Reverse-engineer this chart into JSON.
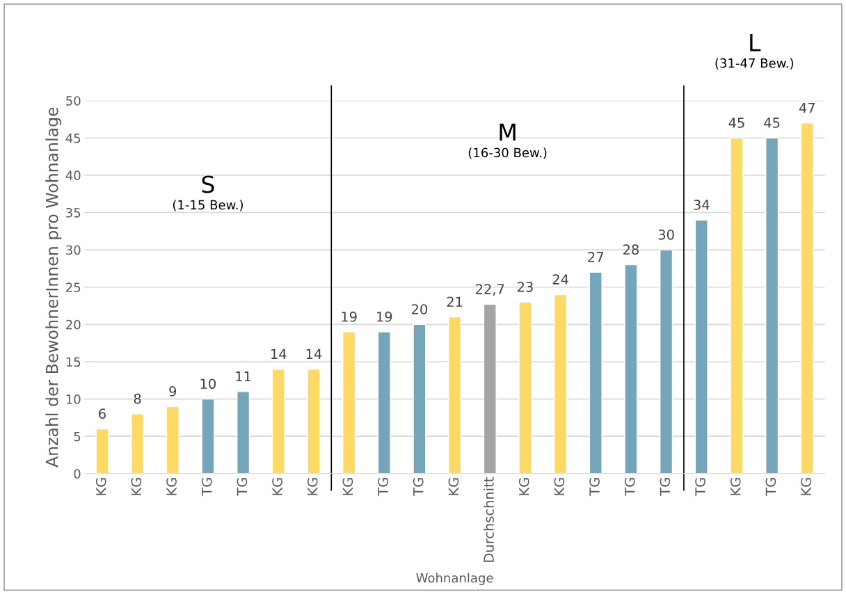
{
  "chart_data": {
    "type": "bar",
    "xlabel": "Wohnanlage",
    "ylabel": "Anzahl der BewohnerInnen pro Wohnanlage",
    "categories": [
      "KG",
      "KG",
      "KG",
      "TG",
      "TG",
      "KG",
      "KG",
      "KG",
      "TG",
      "TG",
      "KG",
      "Durchschnitt",
      "KG",
      "KG",
      "TG",
      "TG",
      "TG",
      "TG",
      "KG",
      "TG",
      "KG"
    ],
    "values": [
      6,
      8,
      9,
      10,
      11,
      14,
      14,
      19,
      19,
      20,
      21,
      22.7,
      23,
      24,
      27,
      28,
      30,
      34,
      45,
      45,
      47
    ],
    "value_labels": [
      "6",
      "8",
      "9",
      "10",
      "11",
      "14",
      "14",
      "19",
      "19",
      "20",
      "21",
      "22,7",
      "23",
      "24",
      "27",
      "28",
      "30",
      "34",
      "45",
      "45",
      "47"
    ],
    "colors": [
      "#ffd966",
      "#ffd966",
      "#ffd966",
      "#75a5bb",
      "#75a5bb",
      "#ffd966",
      "#ffd966",
      "#ffd966",
      "#75a5bb",
      "#75a5bb",
      "#ffd966",
      "#a5a5a5",
      "#ffd966",
      "#ffd966",
      "#75a5bb",
      "#75a5bb",
      "#75a5bb",
      "#75a5bb",
      "#ffd966",
      "#75a5bb",
      "#ffd966"
    ],
    "ylim": [
      0,
      50
    ],
    "yticks": [
      0,
      5,
      10,
      15,
      20,
      25,
      30,
      35,
      40,
      45,
      50
    ],
    "grid": "y",
    "legend": false,
    "annotations": [
      "S",
      "(1-15 Bew.)",
      "M",
      "(16-30 Bew.)",
      "L",
      "(31-47 Bew.)"
    ]
  }
}
